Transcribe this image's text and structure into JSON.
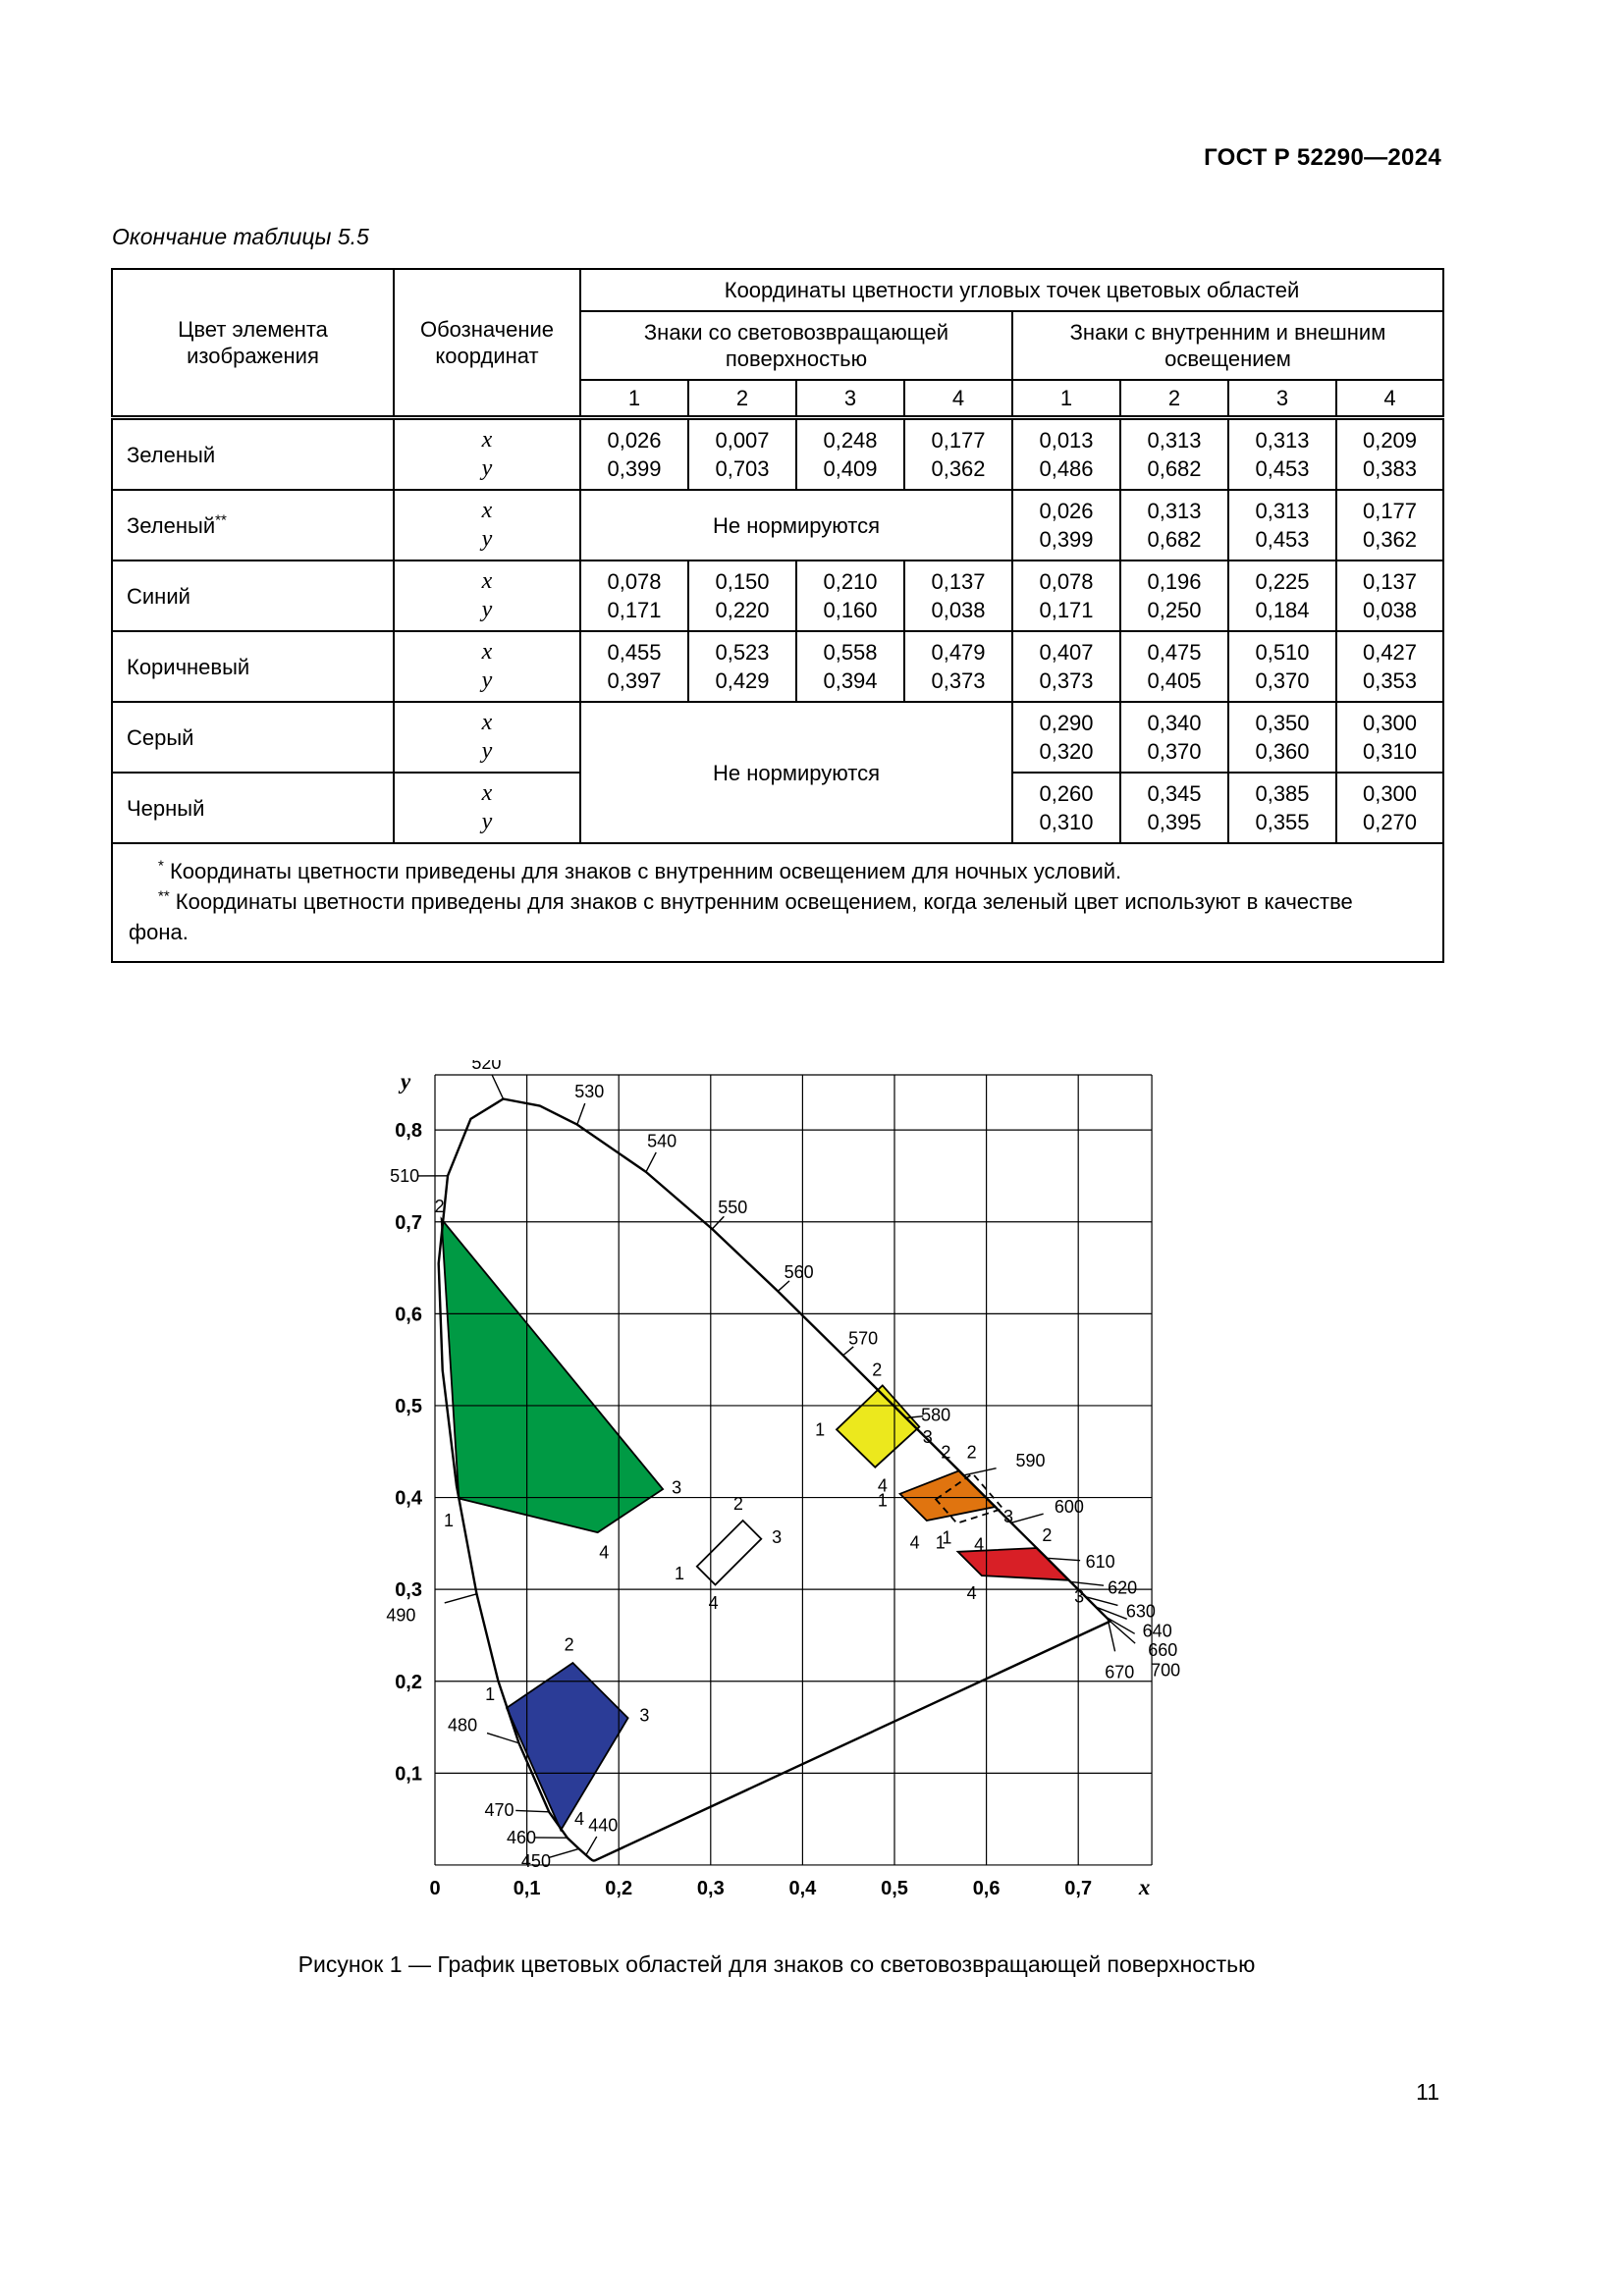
{
  "page": {
    "doc_code": "ГОСТ Р 52290—2024",
    "page_number": "11"
  },
  "table": {
    "caption": "Окончание таблицы 5.5",
    "coord_x": "x",
    "coord_y": "y",
    "not_rated_text": "Не нормируются",
    "header": {
      "col1": "Цвет элемента изображения",
      "col2": "Обозначение координат",
      "top": "Координаты цветности угловых точек цветовых областей",
      "group_left": "Знаки со световозвращающей поверхностью",
      "group_right": "Знаки с внутренним и внешним освещением",
      "point_numbers": [
        "1",
        "2",
        "3",
        "4",
        "1",
        "2",
        "3",
        "4"
      ]
    },
    "rows": [
      {
        "name": "Зеленый",
        "marker": "",
        "left_type": "values",
        "left": {
          "x": [
            "0,026",
            "0,007",
            "0,248",
            "0,177"
          ],
          "y": [
            "0,399",
            "0,703",
            "0,409",
            "0,362"
          ]
        },
        "right": {
          "x": [
            "0,013",
            "0,313",
            "0,313",
            "0,209"
          ],
          "y": [
            "0,486",
            "0,682",
            "0,453",
            "0,383"
          ]
        }
      },
      {
        "name": "Зеленый",
        "marker": "**",
        "left_type": "not_rated",
        "right": {
          "x": [
            "0,026",
            "0,313",
            "0,313",
            "0,177"
          ],
          "y": [
            "0,399",
            "0,682",
            "0,453",
            "0,362"
          ]
        }
      },
      {
        "name": "Синий",
        "marker": "",
        "left_type": "values",
        "left": {
          "x": [
            "0,078",
            "0,150",
            "0,210",
            "0,137"
          ],
          "y": [
            "0,171",
            "0,220",
            "0,160",
            "0,038"
          ]
        },
        "right": {
          "x": [
            "0,078",
            "0,196",
            "0,225",
            "0,137"
          ],
          "y": [
            "0,171",
            "0,250",
            "0,184",
            "0,038"
          ]
        }
      },
      {
        "name": "Коричневый",
        "marker": "",
        "left_type": "values",
        "left": {
          "x": [
            "0,455",
            "0,523",
            "0,558",
            "0,479"
          ],
          "y": [
            "0,397",
            "0,429",
            "0,394",
            "0,373"
          ]
        },
        "right": {
          "x": [
            "0,407",
            "0,475",
            "0,510",
            "0,427"
          ],
          "y": [
            "0,373",
            "0,405",
            "0,370",
            "0,353"
          ]
        }
      },
      {
        "name": "Серый",
        "marker": "",
        "left_type": "not_rated_span2",
        "right": {
          "x": [
            "0,290",
            "0,340",
            "0,350",
            "0,300"
          ],
          "y": [
            "0,320",
            "0,370",
            "0,360",
            "0,310"
          ]
        }
      },
      {
        "name": "Черный",
        "marker": "",
        "left_type": "merged_above",
        "right": {
          "x": [
            "0,260",
            "0,345",
            "0,385",
            "0,300"
          ],
          "y": [
            "0,310",
            "0,395",
            "0,355",
            "0,270"
          ]
        }
      }
    ],
    "footnotes": [
      {
        "marker": "*",
        "text": " Координаты цветности приведены для знаков с внутренним освещением для ночных условий."
      },
      {
        "marker": "**",
        "text": " Координаты цветности приведены для знаков с внутренним освещением, когда зеленый цвет используют в качестве фона."
      }
    ]
  },
  "figure": {
    "caption": "Рисунок 1 — График цветовых областей для знаков со световозвращающей поверхностью"
  },
  "chart_data": {
    "type": "scatter",
    "title": "График цветовых областей для знаков со световозвращающей поверхностью",
    "xlabel": "x",
    "ylabel": "y",
    "xlim": [
      0,
      0.78
    ],
    "ylim": [
      0,
      0.86
    ],
    "grid": true,
    "x_ticks": [
      {
        "v": 0,
        "label": "0"
      },
      {
        "v": 0.1,
        "label": "0,1"
      },
      {
        "v": 0.2,
        "label": "0,2"
      },
      {
        "v": 0.3,
        "label": "0,3"
      },
      {
        "v": 0.4,
        "label": "0,4"
      },
      {
        "v": 0.5,
        "label": "0,5"
      },
      {
        "v": 0.6,
        "label": "0,6"
      },
      {
        "v": 0.7,
        "label": "0,7"
      }
    ],
    "y_ticks": [
      {
        "v": 0.1,
        "label": "0,1"
      },
      {
        "v": 0.2,
        "label": "0,2"
      },
      {
        "v": 0.3,
        "label": "0,3"
      },
      {
        "v": 0.4,
        "label": "0,4"
      },
      {
        "v": 0.5,
        "label": "0,5"
      },
      {
        "v": 0.6,
        "label": "0,6"
      },
      {
        "v": 0.7,
        "label": "0,7"
      },
      {
        "v": 0.8,
        "label": "0,8"
      }
    ],
    "spectral_locus": [
      [
        0.1741,
        0.005
      ],
      [
        0.1726,
        0.0048
      ],
      [
        0.1714,
        0.0051
      ],
      [
        0.1689,
        0.0069
      ],
      [
        0.1644,
        0.0109
      ],
      [
        0.1566,
        0.0177
      ],
      [
        0.144,
        0.0297
      ],
      [
        0.1241,
        0.0578
      ],
      [
        0.0913,
        0.1327
      ],
      [
        0.0687,
        0.2007
      ],
      [
        0.0454,
        0.295
      ],
      [
        0.0235,
        0.4127
      ],
      [
        0.0082,
        0.5384
      ],
      [
        0.0039,
        0.6548
      ],
      [
        0.0139,
        0.7502
      ],
      [
        0.0389,
        0.812
      ],
      [
        0.0743,
        0.8338
      ],
      [
        0.1142,
        0.8262
      ],
      [
        0.1547,
        0.8059
      ],
      [
        0.2296,
        0.7543
      ],
      [
        0.3016,
        0.6923
      ],
      [
        0.3731,
        0.6245
      ],
      [
        0.4441,
        0.5547
      ],
      [
        0.5125,
        0.4866
      ],
      [
        0.5752,
        0.4242
      ],
      [
        0.627,
        0.3725
      ],
      [
        0.6658,
        0.334
      ],
      [
        0.6915,
        0.3083
      ],
      [
        0.7079,
        0.292
      ],
      [
        0.719,
        0.2809
      ],
      [
        0.726,
        0.274
      ],
      [
        0.73,
        0.27
      ],
      [
        0.7334,
        0.2666
      ],
      [
        0.7347,
        0.2653
      ]
    ],
    "wavelength_labels": [
      {
        "t": "520",
        "x": 0.0743,
        "y": 0.8338,
        "lx": 0.056,
        "ly": 0.873
      },
      {
        "t": "530",
        "x": 0.1547,
        "y": 0.8059,
        "lx": 0.168,
        "ly": 0.842
      },
      {
        "t": "540",
        "x": 0.2296,
        "y": 0.7543,
        "lx": 0.247,
        "ly": 0.788
      },
      {
        "t": "510",
        "x": 0.0139,
        "y": 0.7502,
        "lx": -0.033,
        "ly": 0.75
      },
      {
        "t": "550",
        "x": 0.3016,
        "y": 0.6923,
        "lx": 0.324,
        "ly": 0.716
      },
      {
        "t": "560",
        "x": 0.3731,
        "y": 0.6245,
        "lx": 0.396,
        "ly": 0.645
      },
      {
        "t": "570",
        "x": 0.4441,
        "y": 0.5547,
        "lx": 0.466,
        "ly": 0.573
      },
      {
        "t": "580",
        "x": 0.5125,
        "y": 0.4866,
        "lx": 0.545,
        "ly": 0.49
      },
      {
        "t": "590",
        "x": 0.5752,
        "y": 0.4242,
        "lx": 0.648,
        "ly": 0.44
      },
      {
        "t": "600",
        "x": 0.627,
        "y": 0.3725,
        "lx": 0.69,
        "ly": 0.39
      },
      {
        "t": "610",
        "x": 0.6658,
        "y": 0.334,
        "lx": 0.724,
        "ly": 0.33
      },
      {
        "t": "620",
        "x": 0.6915,
        "y": 0.3083,
        "lx": 0.748,
        "ly": 0.302
      },
      {
        "t": "630",
        "x": 0.7079,
        "y": 0.292,
        "lx": 0.768,
        "ly": 0.276
      },
      {
        "t": "640",
        "x": 0.719,
        "y": 0.2809,
        "lx": 0.786,
        "ly": 0.255
      },
      {
        "t": "660",
        "x": 0.73,
        "y": 0.27,
        "lx": 0.792,
        "ly": 0.234
      },
      {
        "t": "670",
        "x": 0.732,
        "y": 0.268,
        "lx": 0.745,
        "ly": 0.21
      },
      {
        "t": "700",
        "x": 0.7347,
        "y": 0.2653,
        "lx": 0.795,
        "ly": 0.212
      },
      {
        "t": "490",
        "x": 0.0454,
        "y": 0.295,
        "lx": -0.037,
        "ly": 0.272
      },
      {
        "t": "480",
        "x": 0.0913,
        "y": 0.1327,
        "lx": 0.03,
        "ly": 0.152
      },
      {
        "t": "470",
        "x": 0.1241,
        "y": 0.0578,
        "lx": 0.07,
        "ly": 0.06
      },
      {
        "t": "460",
        "x": 0.144,
        "y": 0.0297,
        "lx": 0.094,
        "ly": 0.03
      },
      {
        "t": "450",
        "x": 0.1566,
        "y": 0.0177,
        "lx": 0.11,
        "ly": 0.004
      },
      {
        "t": "440",
        "x": 0.1644,
        "y": 0.0109,
        "lx": 0.183,
        "ly": 0.043
      }
    ],
    "regions": [
      {
        "name": "green",
        "fill": "#009a44",
        "dashed": false,
        "vertices": [
          [
            0.007,
            0.703
          ],
          [
            0.248,
            0.409
          ],
          [
            0.177,
            0.362
          ],
          [
            0.026,
            0.399
          ]
        ],
        "labels": [
          {
            "t": "2",
            "x": 0.005,
            "y": 0.717
          },
          {
            "t": "3",
            "x": 0.263,
            "y": 0.411
          },
          {
            "t": "4",
            "x": 0.184,
            "y": 0.34
          },
          {
            "t": "1",
            "x": 0.015,
            "y": 0.375
          }
        ]
      },
      {
        "name": "blue",
        "fill": "#2b3c97",
        "dashed": false,
        "vertices": [
          [
            0.078,
            0.171
          ],
          [
            0.15,
            0.22
          ],
          [
            0.21,
            0.16
          ],
          [
            0.137,
            0.038
          ]
        ],
        "labels": [
          {
            "t": "1",
            "x": 0.06,
            "y": 0.186
          },
          {
            "t": "2",
            "x": 0.146,
            "y": 0.24
          },
          {
            "t": "3",
            "x": 0.228,
            "y": 0.163
          },
          {
            "t": "4",
            "x": 0.157,
            "y": 0.05
          }
        ]
      },
      {
        "name": "white",
        "fill": "#ffffff",
        "dashed": false,
        "vertices": [
          [
            0.285,
            0.325
          ],
          [
            0.335,
            0.375
          ],
          [
            0.355,
            0.355
          ],
          [
            0.305,
            0.305
          ]
        ],
        "labels": [
          {
            "t": "1",
            "x": 0.266,
            "y": 0.317
          },
          {
            "t": "2",
            "x": 0.33,
            "y": 0.393
          },
          {
            "t": "3",
            "x": 0.372,
            "y": 0.357
          },
          {
            "t": "4",
            "x": 0.303,
            "y": 0.285
          }
        ]
      },
      {
        "name": "yellow",
        "fill": "#ece81d",
        "dashed": false,
        "vertices": [
          [
            0.437,
            0.474
          ],
          [
            0.487,
            0.522
          ],
          [
            0.527,
            0.477
          ],
          [
            0.479,
            0.433
          ]
        ],
        "labels": [
          {
            "t": "1",
            "x": 0.419,
            "y": 0.474
          },
          {
            "t": "2",
            "x": 0.481,
            "y": 0.539
          },
          {
            "t": "3",
            "x": 0.536,
            "y": 0.466
          },
          {
            "t": "4",
            "x": 0.487,
            "y": 0.413
          }
        ]
      },
      {
        "name": "orange",
        "fill": "#e0740f",
        "dashed": false,
        "vertices": [
          [
            0.506,
            0.404
          ],
          [
            0.57,
            0.429
          ],
          [
            0.61,
            0.39
          ],
          [
            0.535,
            0.375
          ]
        ],
        "labels": [
          {
            "t": "1",
            "x": 0.487,
            "y": 0.397
          },
          {
            "t": "2",
            "x": 0.556,
            "y": 0.449
          },
          {
            "t": "3",
            "x": 0.624,
            "y": 0.379
          },
          {
            "t": "4",
            "x": 0.522,
            "y": 0.351
          }
        ]
      },
      {
        "name": "orange-dashed",
        "fill": "none",
        "dashed": true,
        "vertices": [
          [
            0.545,
            0.398
          ],
          [
            0.585,
            0.426
          ],
          [
            0.618,
            0.388
          ],
          [
            0.568,
            0.372
          ]
        ],
        "labels": [
          {
            "t": "2",
            "x": 0.584,
            "y": 0.449
          },
          {
            "t": "1",
            "x": 0.55,
            "y": 0.351
          },
          {
            "t": "4",
            "x": 0.592,
            "y": 0.349
          }
        ]
      },
      {
        "name": "red",
        "fill": "#d81f26",
        "dashed": false,
        "vertices": [
          [
            0.569,
            0.341
          ],
          [
            0.655,
            0.345
          ],
          [
            0.69,
            0.31
          ],
          [
            0.595,
            0.315
          ]
        ],
        "labels": [
          {
            "t": "1",
            "x": 0.557,
            "y": 0.356
          },
          {
            "t": "2",
            "x": 0.666,
            "y": 0.359
          },
          {
            "t": "3",
            "x": 0.701,
            "y": 0.292
          },
          {
            "t": "4",
            "x": 0.584,
            "y": 0.296
          }
        ]
      }
    ]
  }
}
